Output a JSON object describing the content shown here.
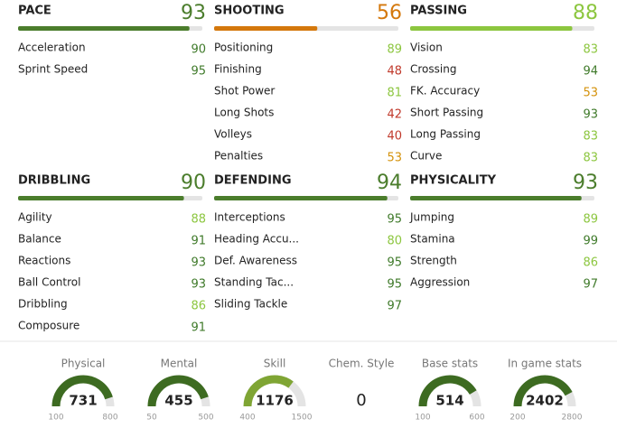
{
  "groups": [
    {
      "name": "PACE",
      "value": 93,
      "color": "#4b7d2c",
      "attributes": [
        {
          "name": "Acceleration",
          "value": 90,
          "color": "#3f7a2a"
        },
        {
          "name": "Sprint Speed",
          "value": 95,
          "color": "#3f7a2a"
        }
      ]
    },
    {
      "name": "SHOOTING",
      "value": 56,
      "color": "#d4780c",
      "attributes": [
        {
          "name": "Positioning",
          "value": 89,
          "color": "#8cc63f"
        },
        {
          "name": "Finishing",
          "value": 48,
          "color": "#c0392b"
        },
        {
          "name": "Shot Power",
          "value": 81,
          "color": "#8cc63f"
        },
        {
          "name": "Long Shots",
          "value": 42,
          "color": "#c0392b"
        },
        {
          "name": "Volleys",
          "value": 40,
          "color": "#c0392b"
        },
        {
          "name": "Penalties",
          "value": 53,
          "color": "#d4920c"
        }
      ]
    },
    {
      "name": "PASSING",
      "value": 88,
      "color": "#8cc63f",
      "attributes": [
        {
          "name": "Vision",
          "value": 83,
          "color": "#8cc63f"
        },
        {
          "name": "Crossing",
          "value": 94,
          "color": "#3f7a2a"
        },
        {
          "name": "FK. Accuracy",
          "value": 53,
          "color": "#d4920c"
        },
        {
          "name": "Short Passing",
          "value": 93,
          "color": "#3f7a2a"
        },
        {
          "name": "Long Passing",
          "value": 83,
          "color": "#8cc63f"
        },
        {
          "name": "Curve",
          "value": 83,
          "color": "#8cc63f"
        }
      ]
    },
    {
      "name": "DRIBBLING",
      "value": 90,
      "color": "#4b7d2c",
      "attributes": [
        {
          "name": "Agility",
          "value": 88,
          "color": "#8cc63f"
        },
        {
          "name": "Balance",
          "value": 91,
          "color": "#3f7a2a"
        },
        {
          "name": "Reactions",
          "value": 93,
          "color": "#3f7a2a"
        },
        {
          "name": "Ball Control",
          "value": 93,
          "color": "#3f7a2a"
        },
        {
          "name": "Dribbling",
          "value": 86,
          "color": "#8cc63f"
        },
        {
          "name": "Composure",
          "value": 91,
          "color": "#3f7a2a"
        }
      ]
    },
    {
      "name": "DEFENDING",
      "value": 94,
      "color": "#4b7d2c",
      "attributes": [
        {
          "name": "Interceptions",
          "value": 95,
          "color": "#3f7a2a"
        },
        {
          "name": "Heading Accu...",
          "value": 80,
          "color": "#8cc63f"
        },
        {
          "name": "Def. Awareness",
          "value": 95,
          "color": "#3f7a2a"
        },
        {
          "name": "Standing Tac...",
          "value": 95,
          "color": "#3f7a2a"
        },
        {
          "name": "Sliding Tackle",
          "value": 97,
          "color": "#3f7a2a"
        }
      ]
    },
    {
      "name": "PHYSICALITY",
      "value": 93,
      "color": "#4b7d2c",
      "attributes": [
        {
          "name": "Jumping",
          "value": 89,
          "color": "#8cc63f"
        },
        {
          "name": "Stamina",
          "value": 99,
          "color": "#3f7a2a"
        },
        {
          "name": "Strength",
          "value": 86,
          "color": "#8cc63f"
        },
        {
          "name": "Aggression",
          "value": 97,
          "color": "#3f7a2a"
        }
      ]
    }
  ],
  "gauges": [
    {
      "label": "Physical",
      "value": 731,
      "min": 100,
      "max": 800,
      "color": "#3d6b21"
    },
    {
      "label": "Mental",
      "value": 455,
      "min": 50,
      "max": 500,
      "color": "#3d6b21"
    },
    {
      "label": "Skill",
      "value": 1176,
      "min": 400,
      "max": 1500,
      "color": "#7fa534"
    },
    {
      "label": "Chem. Style",
      "value": 0
    },
    {
      "label": "Base stats",
      "value": 514,
      "min": 100,
      "max": 600,
      "color": "#3d6b21"
    },
    {
      "label": "In game stats",
      "value": 2402,
      "min": 200,
      "max": 2800,
      "color": "#3d6b21"
    }
  ]
}
